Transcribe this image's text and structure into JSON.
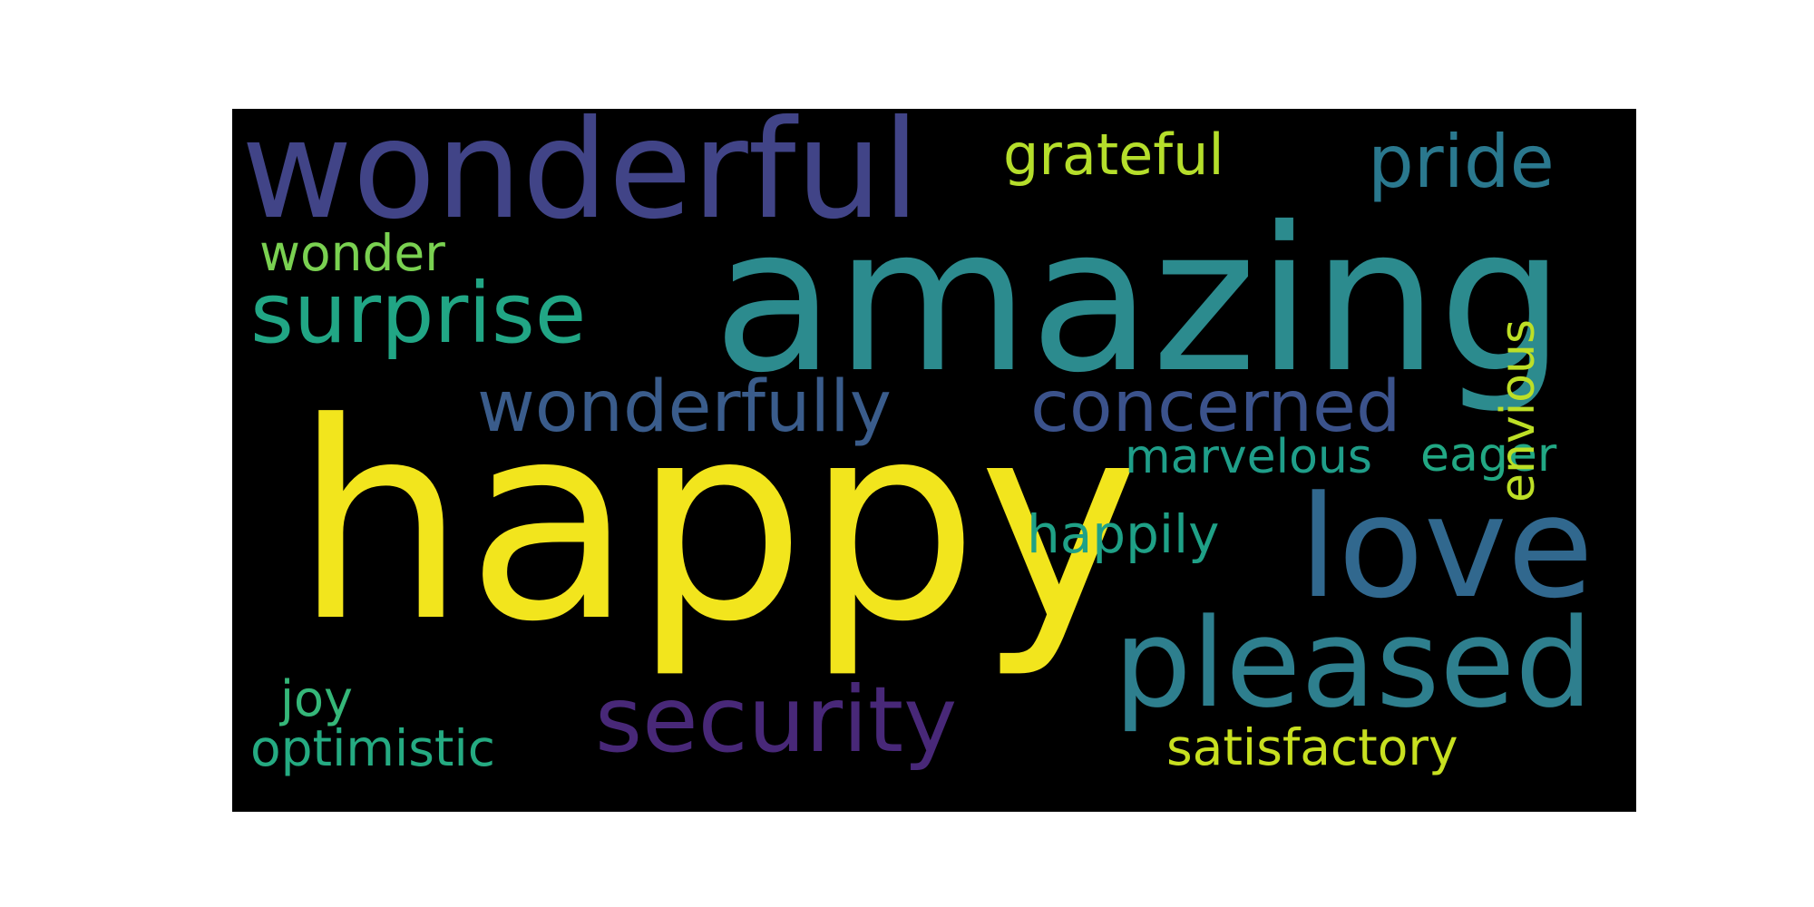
{
  "words": [
    {
      "key": "happy",
      "text": "happy",
      "color": "#f2e51d"
    },
    {
      "key": "amazing",
      "text": "amazing",
      "color": "#2c8b8e"
    },
    {
      "key": "wonderful",
      "text": "wonderful",
      "color": "#414487"
    },
    {
      "key": "love",
      "text": "love",
      "color": "#31688e"
    },
    {
      "key": "pleased",
      "text": "pleased",
      "color": "#2e7f8e"
    },
    {
      "key": "security",
      "text": "security",
      "color": "#482878"
    },
    {
      "key": "surprise",
      "text": "surprise",
      "color": "#21a685"
    },
    {
      "key": "wonderfully",
      "text": "wonderfully",
      "color": "#3a5c8b"
    },
    {
      "key": "concerned",
      "text": "concerned",
      "color": "#3b528b"
    },
    {
      "key": "pride",
      "text": "pride",
      "color": "#2a788e"
    },
    {
      "key": "grateful",
      "text": "grateful",
      "color": "#b5de2b"
    },
    {
      "key": "wonder",
      "text": "wonder",
      "color": "#7ad151"
    },
    {
      "key": "marvelous",
      "text": "marvelous",
      "color": "#1f9e89"
    },
    {
      "key": "eager",
      "text": "eager",
      "color": "#22a884"
    },
    {
      "key": "envious",
      "text": "envious",
      "color": "#bddf26"
    },
    {
      "key": "happily",
      "text": "happily",
      "color": "#1fa187"
    },
    {
      "key": "joy",
      "text": "joy",
      "color": "#35b779"
    },
    {
      "key": "optimistic",
      "text": "optimistic",
      "color": "#25ab82"
    },
    {
      "key": "satisfactory",
      "text": "satisfactory",
      "color": "#c8e020"
    }
  ]
}
